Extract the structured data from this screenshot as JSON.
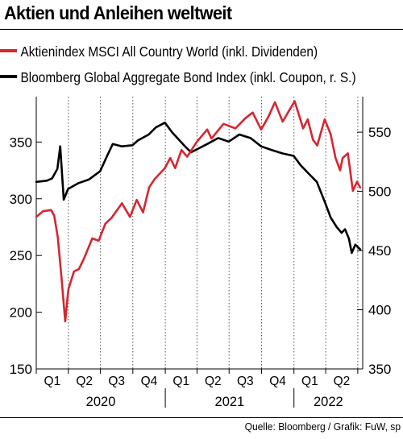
{
  "chart_data": {
    "type": "line",
    "title": "Aktien und Anleihen weltweit",
    "source": "Quelle: Bloomberg / Grafik: FuW, sp",
    "x_quarters": [
      "Q1",
      "Q2",
      "Q3",
      "Q4",
      "Q1",
      "Q2",
      "Q3",
      "Q4",
      "Q1",
      "Q2"
    ],
    "x_years": [
      "2020",
      "2021",
      "2022"
    ],
    "x_range": [
      "2020-01-01",
      "2022-07-15"
    ],
    "left_axis": {
      "ticks": [
        150,
        200,
        250,
        300,
        350
      ],
      "ylim": [
        150,
        390
      ]
    },
    "right_axis": {
      "ticks": [
        350,
        400,
        450,
        500,
        550
      ],
      "ylim": [
        350,
        580
      ]
    },
    "grid": "vertical dotted at quarter boundaries",
    "legend_placement": "top-left",
    "series": [
      {
        "name": "Aktienindex MSCI All Country World (inkl. Dividenden)",
        "color": "#d62631",
        "axis": "left",
        "points": [
          [
            "2020-01-01",
            284
          ],
          [
            "2020-01-20",
            289
          ],
          [
            "2020-02-12",
            290
          ],
          [
            "2020-02-21",
            285
          ],
          [
            "2020-03-02",
            266
          ],
          [
            "2020-03-12",
            232
          ],
          [
            "2020-03-23",
            192
          ],
          [
            "2020-04-01",
            220
          ],
          [
            "2020-04-17",
            236
          ],
          [
            "2020-05-01",
            238
          ],
          [
            "2020-05-15",
            247
          ],
          [
            "2020-06-08",
            265
          ],
          [
            "2020-06-26",
            263
          ],
          [
            "2020-07-15",
            278
          ],
          [
            "2020-08-01",
            283
          ],
          [
            "2020-08-31",
            296
          ],
          [
            "2020-09-23",
            284
          ],
          [
            "2020-10-12",
            299
          ],
          [
            "2020-10-30",
            288
          ],
          [
            "2020-11-16",
            310
          ],
          [
            "2020-12-01",
            317
          ],
          [
            "2020-12-31",
            327
          ],
          [
            "2021-01-15",
            336
          ],
          [
            "2021-01-29",
            327
          ],
          [
            "2021-02-16",
            343
          ],
          [
            "2021-03-04",
            337
          ],
          [
            "2021-03-31",
            350
          ],
          [
            "2021-04-30",
            361
          ],
          [
            "2021-05-12",
            353
          ],
          [
            "2021-06-15",
            366
          ],
          [
            "2021-07-19",
            362
          ],
          [
            "2021-08-16",
            371
          ],
          [
            "2021-09-06",
            376
          ],
          [
            "2021-09-30",
            361
          ],
          [
            "2021-10-20",
            372
          ],
          [
            "2021-11-08",
            385
          ],
          [
            "2021-11-30",
            368
          ],
          [
            "2021-12-15",
            376
          ],
          [
            "2022-01-03",
            386
          ],
          [
            "2022-01-27",
            362
          ],
          [
            "2022-02-09",
            370
          ],
          [
            "2022-02-24",
            352
          ],
          [
            "2022-03-08",
            347
          ],
          [
            "2022-03-29",
            370
          ],
          [
            "2022-04-15",
            357
          ],
          [
            "2022-04-29",
            336
          ],
          [
            "2022-05-12",
            325
          ],
          [
            "2022-05-19",
            336
          ],
          [
            "2022-06-03",
            340
          ],
          [
            "2022-06-17",
            307
          ],
          [
            "2022-06-29",
            315
          ],
          [
            "2022-07-08",
            310
          ]
        ]
      },
      {
        "name": "Bloomberg Global Aggregate Bond Index (inkl. Coupon, r. S.)",
        "color": "#000000",
        "axis": "right",
        "points": [
          [
            "2020-01-01",
            508
          ],
          [
            "2020-01-31",
            509
          ],
          [
            "2020-02-15",
            511
          ],
          [
            "2020-03-01",
            519
          ],
          [
            "2020-03-09",
            538
          ],
          [
            "2020-03-19",
            493
          ],
          [
            "2020-03-31",
            502
          ],
          [
            "2020-04-30",
            507
          ],
          [
            "2020-05-29",
            510
          ],
          [
            "2020-06-30",
            517
          ],
          [
            "2020-07-20",
            530
          ],
          [
            "2020-08-05",
            540
          ],
          [
            "2020-08-31",
            538
          ],
          [
            "2020-09-30",
            539
          ],
          [
            "2020-10-15",
            543
          ],
          [
            "2020-11-15",
            548
          ],
          [
            "2020-12-05",
            554
          ],
          [
            "2020-12-31",
            558
          ],
          [
            "2021-01-20",
            550
          ],
          [
            "2021-02-26",
            538
          ],
          [
            "2021-03-15",
            533
          ],
          [
            "2021-04-30",
            540
          ],
          [
            "2021-05-31",
            545
          ],
          [
            "2021-06-30",
            542
          ],
          [
            "2021-07-30",
            548
          ],
          [
            "2021-08-31",
            545
          ],
          [
            "2021-09-30",
            538
          ],
          [
            "2021-10-29",
            535
          ],
          [
            "2021-11-30",
            532
          ],
          [
            "2021-12-31",
            530
          ],
          [
            "2022-01-20",
            522
          ],
          [
            "2022-02-15",
            514
          ],
          [
            "2022-03-07",
            508
          ],
          [
            "2022-03-31",
            490
          ],
          [
            "2022-04-15",
            478
          ],
          [
            "2022-05-02",
            470
          ],
          [
            "2022-05-16",
            465
          ],
          [
            "2022-05-26",
            468
          ],
          [
            "2022-06-06",
            460
          ],
          [
            "2022-06-14",
            448
          ],
          [
            "2022-06-24",
            455
          ],
          [
            "2022-07-08",
            451
          ]
        ]
      }
    ]
  }
}
